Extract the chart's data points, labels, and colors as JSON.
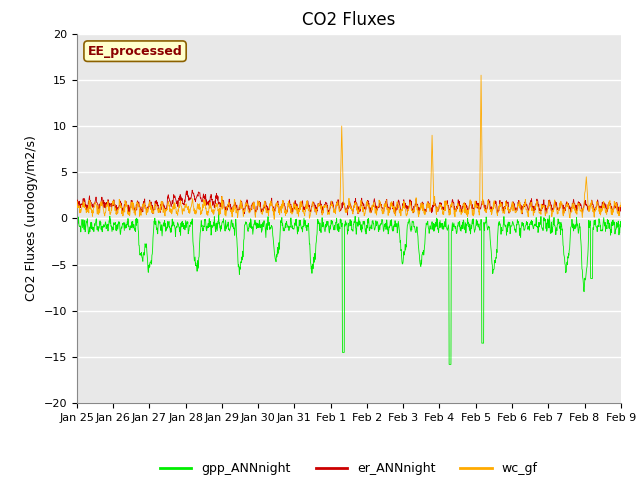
{
  "title": "CO2 Fluxes",
  "ylabel": "CO2 Fluxes (urology/m2/s)",
  "xlabel": "",
  "ylim": [
    -20,
    20
  ],
  "annotation_text": "EE_processed",
  "annotation_facecolor": "#ffffcc",
  "annotation_edgecolor": "#8b0000",
  "legend_labels": [
    "gpp_ANNnight",
    "er_ANNnight",
    "wc_gf"
  ],
  "line_colors": [
    "#00ee00",
    "#cc0000",
    "#ffaa00"
  ],
  "background_color": "#e8e8e8",
  "fig_facecolor": "#ffffff",
  "xtick_labels": [
    "Jan 25",
    "Jan 26",
    "Jan 27",
    "Jan 28",
    "Jan 29",
    "Jan 30",
    "Jan 31",
    "Feb 1",
    "Feb 2",
    "Feb 3",
    "Feb 4",
    "Feb 5",
    "Feb 6",
    "Feb 7",
    "Feb 8",
    "Feb 9"
  ],
  "n_points": 1600,
  "title_fontsize": 12,
  "label_fontsize": 9,
  "tick_fontsize": 8
}
